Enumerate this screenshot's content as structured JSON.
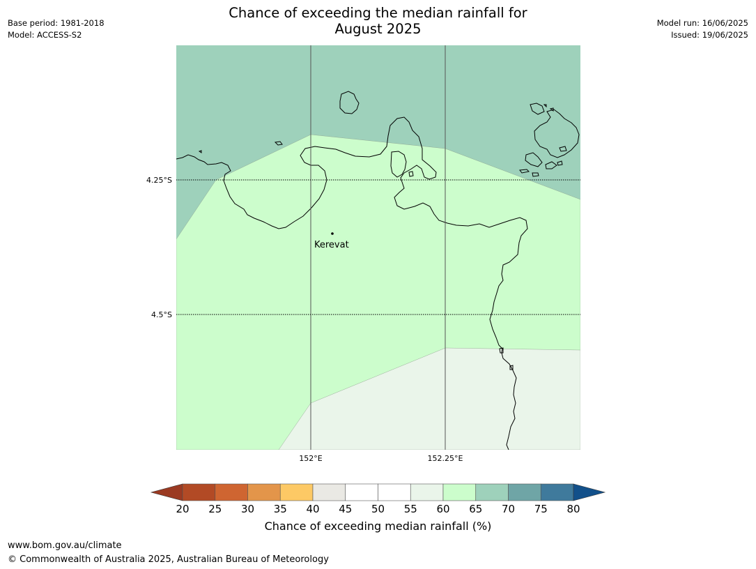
{
  "header": {
    "title_line1": "Chance of exceeding the median rainfall for",
    "title_line2": "August 2025",
    "base_period": "Base period: 1981-2018",
    "model": "Model: ACCESS-S2",
    "model_run": "Model run: 16/06/2025",
    "issued": "Issued: 19/06/2025"
  },
  "map": {
    "lat_labels": [
      "4.25°S",
      "4.5°S"
    ],
    "lon_labels": [
      "152°E",
      "152.25°E"
    ],
    "place": {
      "name": "Kerevat"
    },
    "fill_colors": {
      "band_65_70": "#9ed1bb",
      "band_60_65": "#ccfdcc",
      "band_55_60": "#eaf5ea"
    },
    "coast_color": "#000000",
    "grid_color": "#555555"
  },
  "colorbar": {
    "label": "Chance of exceeding median rainfall (%)",
    "ticks": [
      "20",
      "25",
      "30",
      "35",
      "40",
      "45",
      "50",
      "55",
      "60",
      "65",
      "70",
      "75",
      "80"
    ],
    "under_color": "#9b3a22",
    "over_color": "#12508a",
    "colors": [
      "#b24a25",
      "#cf6531",
      "#e3954a",
      "#fdc965",
      "#eae9e4",
      "#ffffff",
      "#ffffff",
      "#eaf5ea",
      "#ccfdcc",
      "#9ed1bb",
      "#6fa5a6",
      "#3f7a9c"
    ]
  },
  "footer": {
    "url": "www.bom.gov.au/climate",
    "copyright": "© Commonwealth of Australia 2025, Australian Bureau of Meteorology"
  }
}
